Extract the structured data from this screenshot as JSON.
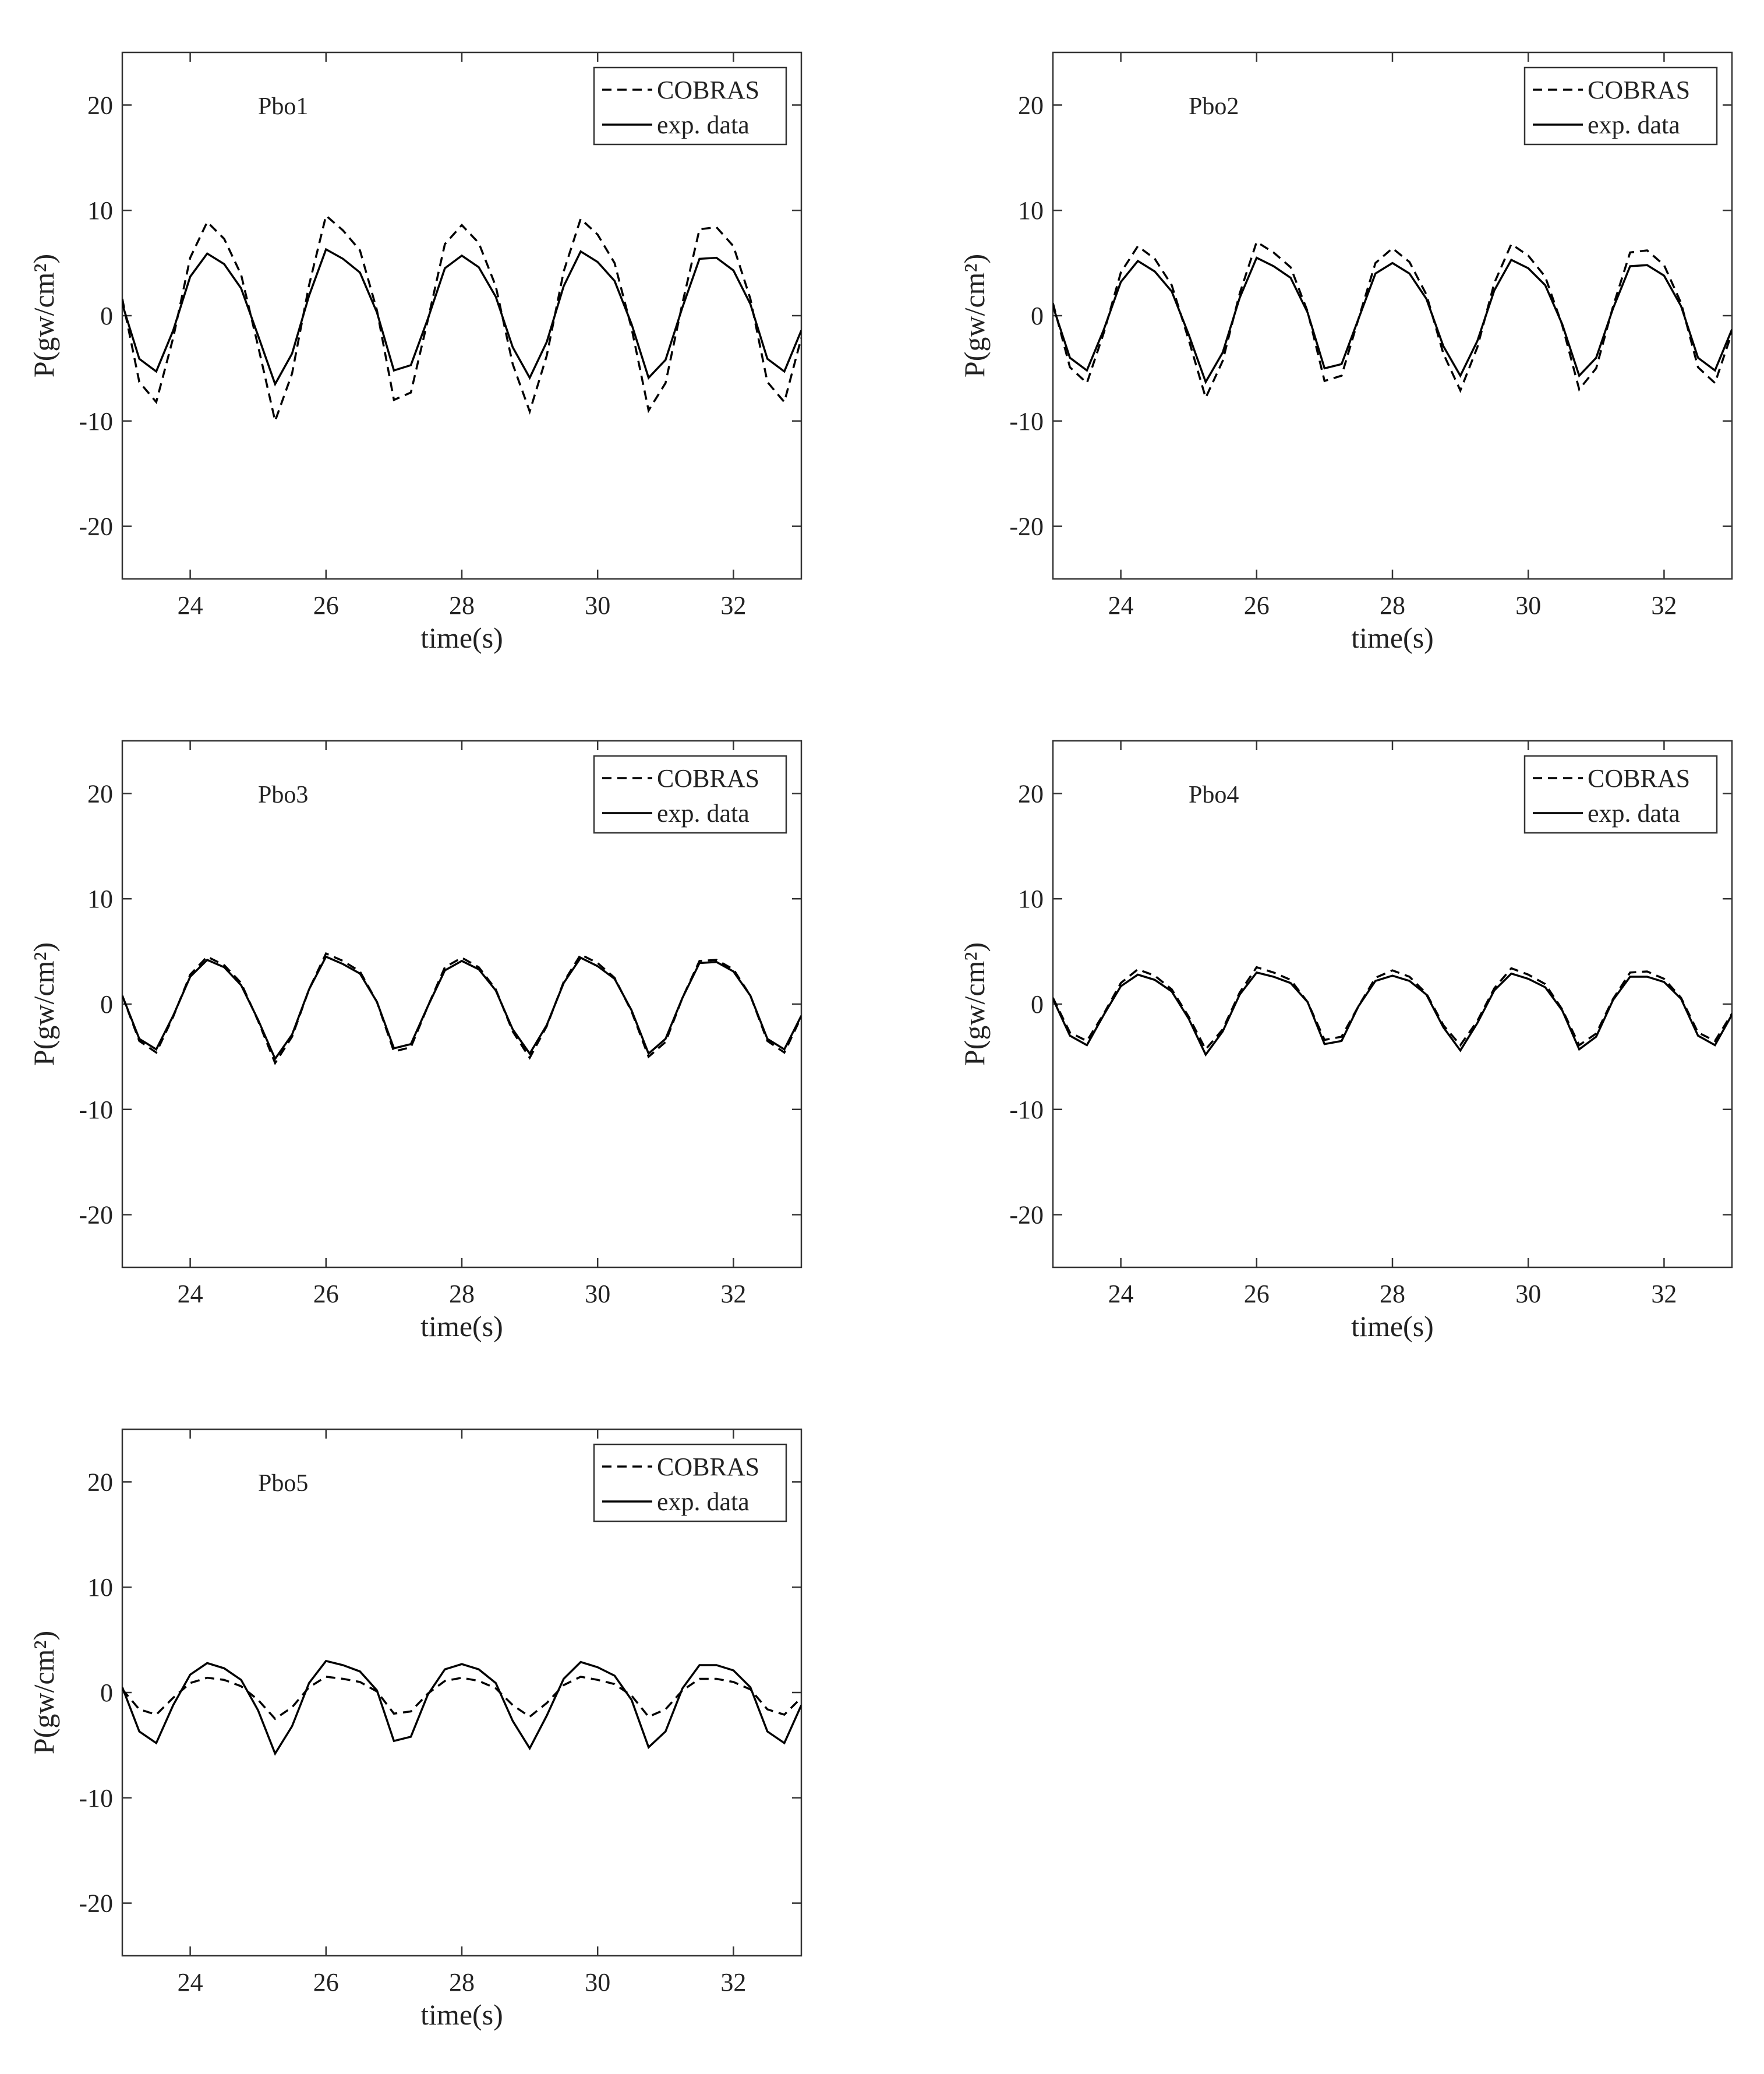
{
  "chart_data": [
    {
      "type": "line",
      "annotation": "Pbo1",
      "xlabel": "time(s)",
      "ylabel": "P(gw/cm²)",
      "xlim": [
        23,
        33
      ],
      "ylim": [
        -25,
        25
      ],
      "xticks": [
        24,
        26,
        28,
        30,
        32
      ],
      "yticks": [
        -20,
        -10,
        0,
        10,
        20
      ],
      "grid": false,
      "legend": "upper right",
      "x": [
        23,
        23.25,
        23.5,
        23.75,
        24,
        24.25,
        24.5,
        24.75,
        25,
        25.25,
        25.5,
        25.75,
        26,
        26.25,
        26.5,
        26.75,
        27,
        27.25,
        27.5,
        27.75,
        28,
        28.25,
        28.5,
        28.75,
        29,
        29.25,
        29.5,
        29.75,
        30,
        30.25,
        30.5,
        30.75,
        31,
        31.25,
        31.5,
        31.75,
        32,
        32.25,
        32.5,
        32.75,
        33
      ],
      "series": [
        {
          "name": "COBRAS",
          "color": "#000000",
          "linestyle": "dashed",
          "values": [
            1.6,
            -6.3,
            -8.2,
            -2.1,
            5.5,
            8.9,
            7.3,
            3.9,
            -2.9,
            -10,
            -5.5,
            2.9,
            9.5,
            8.1,
            6.2,
            0.5,
            -8,
            -7.3,
            -0.4,
            6.8,
            8.6,
            6.9,
            2.8,
            -4.6,
            -9.1,
            -3.8,
            4.2,
            9.2,
            7.7,
            5.0,
            -1.2,
            -9,
            -6.4,
            1.2,
            8.2,
            8.4,
            6.6,
            1.6,
            -6.3,
            -8.2,
            -2.1
          ]
        },
        {
          "name": "exp. data",
          "color": "#000000",
          "linestyle": "solid",
          "values": [
            1.1,
            -4.1,
            -5.3,
            -1.4,
            3.7,
            5.9,
            4.9,
            2.6,
            -1.9,
            -6.5,
            -3.6,
            1.9,
            6.3,
            5.4,
            4.1,
            0.3,
            -5.2,
            -4.7,
            -0.3,
            4.5,
            5.7,
            4.6,
            1.8,
            -3.0,
            -5.9,
            -2.5,
            2.8,
            6.1,
            5.1,
            3.3,
            -0.8,
            -5.9,
            -4.2,
            0.8,
            5.4,
            5.5,
            4.3,
            1.1,
            -4.1,
            -5.3,
            -1.4
          ]
        }
      ]
    },
    {
      "type": "line",
      "annotation": "Pbo2",
      "xlabel": "time(s)",
      "ylabel": "P(gw/cm²)",
      "xlim": [
        23,
        33
      ],
      "ylim": [
        -25,
        25
      ],
      "xticks": [
        24,
        26,
        28,
        30,
        32
      ],
      "yticks": [
        -20,
        -10,
        0,
        10,
        20
      ],
      "grid": false,
      "legend": "upper right",
      "x": [
        23,
        23.25,
        23.5,
        23.75,
        24,
        24.25,
        24.5,
        24.75,
        25,
        25.25,
        25.5,
        25.75,
        26,
        26.25,
        26.5,
        26.75,
        27,
        27.25,
        27.5,
        27.75,
        28,
        28.25,
        28.5,
        28.75,
        29,
        29.25,
        29.5,
        29.75,
        30,
        30.25,
        30.5,
        30.75,
        31,
        31.25,
        31.5,
        31.75,
        32,
        32.25,
        32.5,
        32.75,
        33
      ],
      "series": [
        {
          "name": "COBRAS",
          "color": "#000000",
          "linestyle": "dashed",
          "values": [
            1.2,
            -4.9,
            -6.4,
            -1.6,
            4.1,
            6.6,
            5.4,
            2.9,
            -2.3,
            -7.8,
            -4.3,
            2.1,
            7,
            6.0,
            4.6,
            0.4,
            -6.2,
            -5.7,
            -0.3,
            5.0,
            6.4,
            5.1,
            2.0,
            -3.6,
            -7.1,
            -3.0,
            3.1,
            6.8,
            5.7,
            3.7,
            -0.9,
            -7.0,
            -5.0,
            0.9,
            6.0,
            6.2,
            4.8,
            1.2,
            -4.9,
            -6.4,
            -1.6
          ]
        },
        {
          "name": "exp. data",
          "color": "#000000",
          "linestyle": "solid",
          "values": [
            0.9,
            -4.0,
            -5.2,
            -1.3,
            3.2,
            5.2,
            4.2,
            2.3,
            -1.8,
            -6.3,
            -3.5,
            1.7,
            5.5,
            4.7,
            3.6,
            0.3,
            -5.0,
            -4.6,
            -0.3,
            4.0,
            5.0,
            4.0,
            1.6,
            -2.9,
            -5.7,
            -2.4,
            2.4,
            5.3,
            4.5,
            2.9,
            -0.8,
            -5.7,
            -4.0,
            0.7,
            4.7,
            4.8,
            3.8,
            0.9,
            -4.0,
            -5.2,
            -1.3
          ]
        }
      ]
    },
    {
      "type": "line",
      "annotation": "Pbo3",
      "xlabel": "time(s)",
      "ylabel": "P(gw/cm²)",
      "xlim": [
        23,
        33
      ],
      "ylim": [
        -25,
        25
      ],
      "xticks": [
        24,
        26,
        28,
        30,
        32
      ],
      "yticks": [
        -20,
        -10,
        0,
        10,
        20
      ],
      "grid": false,
      "legend": "upper right",
      "x": [
        23,
        23.25,
        23.5,
        23.75,
        24,
        24.25,
        24.5,
        24.75,
        25,
        25.25,
        25.5,
        25.75,
        26,
        26.25,
        26.5,
        26.75,
        27,
        27.25,
        27.5,
        27.75,
        28,
        28.25,
        28.5,
        28.75,
        29,
        29.25,
        29.5,
        29.75,
        30,
        30.25,
        30.5,
        30.75,
        31,
        31.25,
        31.5,
        31.75,
        32,
        32.25,
        32.5,
        32.75,
        33
      ],
      "series": [
        {
          "name": "COBRAS",
          "color": "#000000",
          "linestyle": "dashed",
          "values": [
            0.8,
            -3.5,
            -4.6,
            -1.2,
            2.8,
            4.5,
            3.7,
            2.0,
            -1.6,
            -5.6,
            -3.1,
            1.4,
            4.8,
            4.1,
            3.1,
            0.2,
            -4.5,
            -4.1,
            -0.2,
            3.5,
            4.4,
            3.5,
            1.4,
            -2.6,
            -5.1,
            -2.1,
            2.1,
            4.7,
            3.9,
            2.5,
            -0.7,
            -5.0,
            -3.6,
            0.6,
            4.1,
            4.2,
            3.3,
            0.8,
            -3.5,
            -4.6,
            -1.2
          ]
        },
        {
          "name": "exp. data",
          "color": "#000000",
          "linestyle": "solid",
          "values": [
            0.8,
            -3.3,
            -4.3,
            -1.1,
            2.6,
            4.2,
            3.5,
            1.8,
            -1.5,
            -5.2,
            -2.9,
            1.4,
            4.5,
            3.8,
            2.9,
            0.2,
            -4.2,
            -3.8,
            -0.2,
            3.2,
            4.1,
            3.3,
            1.3,
            -2.4,
            -4.7,
            -2.0,
            2.0,
            4.4,
            3.6,
            2.4,
            -0.6,
            -4.7,
            -3.3,
            0.6,
            3.9,
            4.0,
            3.1,
            0.8,
            -3.3,
            -4.3,
            -1.1
          ]
        }
      ]
    },
    {
      "type": "line",
      "annotation": "Pbo4",
      "xlabel": "time(s)",
      "ylabel": "P(gw/cm²)",
      "xlim": [
        23,
        33
      ],
      "ylim": [
        -25,
        25
      ],
      "xticks": [
        24,
        26,
        28,
        30,
        32
      ],
      "yticks": [
        -20,
        -10,
        0,
        10,
        20
      ],
      "grid": false,
      "legend": "upper right",
      "x": [
        23,
        23.25,
        23.5,
        23.75,
        24,
        24.25,
        24.5,
        24.75,
        25,
        25.25,
        25.5,
        25.75,
        26,
        26.25,
        26.5,
        26.75,
        27,
        27.25,
        27.5,
        27.75,
        28,
        28.25,
        28.5,
        28.75,
        29,
        29.25,
        29.5,
        29.75,
        30,
        30.25,
        30.5,
        30.75,
        31,
        31.25,
        31.5,
        31.75,
        32,
        32.25,
        32.5,
        32.75,
        33
      ],
      "series": [
        {
          "name": "COBRAS",
          "color": "#000000",
          "linestyle": "dashed",
          "values": [
            0.6,
            -2.7,
            -3.5,
            -0.9,
            2.0,
            3.3,
            2.7,
            1.4,
            -1.2,
            -4.3,
            -2.4,
            1.1,
            3.5,
            3.0,
            2.3,
            0.2,
            -3.4,
            -3.1,
            -0.2,
            2.5,
            3.2,
            2.6,
            1.0,
            -2.0,
            -3.9,
            -1.6,
            1.5,
            3.4,
            2.8,
            1.9,
            -0.5,
            -3.9,
            -2.8,
            0.5,
            3.0,
            3.1,
            2.4,
            0.6,
            -2.7,
            -3.5,
            -0.9
          ]
        },
        {
          "name": "exp. data",
          "color": "#000000",
          "linestyle": "solid",
          "values": [
            0.5,
            -3.0,
            -3.9,
            -1.0,
            1.7,
            2.8,
            2.3,
            1.2,
            -1.4,
            -4.8,
            -2.6,
            0.9,
            3,
            2.6,
            2.0,
            0.2,
            -3.8,
            -3.5,
            -0.2,
            2.2,
            2.7,
            2.2,
            0.9,
            -2.2,
            -4.4,
            -1.8,
            1.3,
            2.9,
            2.4,
            1.6,
            -0.6,
            -4.3,
            -3.1,
            0.4,
            2.6,
            2.6,
            2.1,
            0.5,
            -3.0,
            -3.9,
            -1.0
          ]
        }
      ]
    },
    {
      "type": "line",
      "annotation": "Pbo5",
      "xlabel": "time(s)",
      "ylabel": "P(gw/cm²)",
      "xlim": [
        23,
        33
      ],
      "ylim": [
        -25,
        25
      ],
      "xticks": [
        24,
        26,
        28,
        30,
        32
      ],
      "yticks": [
        -20,
        -10,
        0,
        10,
        20
      ],
      "grid": false,
      "legend": "upper right",
      "x": [
        23,
        23.25,
        23.5,
        23.75,
        24,
        24.25,
        24.5,
        24.75,
        25,
        25.25,
        25.5,
        25.75,
        26,
        26.25,
        26.5,
        26.75,
        27,
        27.25,
        27.5,
        27.75,
        28,
        28.25,
        28.5,
        28.75,
        29,
        29.25,
        29.5,
        29.75,
        30,
        30.25,
        30.5,
        30.75,
        31,
        31.25,
        31.5,
        31.75,
        32,
        32.25,
        32.5,
        32.75,
        33
      ],
      "series": [
        {
          "name": "COBRAS",
          "color": "#000000",
          "linestyle": "dashed",
          "values": [
            0.3,
            -1.6,
            -2.1,
            -0.5,
            0.9,
            1.4,
            1.2,
            0.6,
            -0.7,
            -2.5,
            -1.4,
            0.5,
            1.5,
            1.3,
            1.0,
            0.1,
            -2.0,
            -1.8,
            -0.1,
            1.1,
            1.4,
            1.1,
            0.4,
            -1.2,
            -2.3,
            -1.0,
            0.7,
            1.5,
            1.2,
            0.8,
            -0.3,
            -2.3,
            -1.6,
            0.2,
            1.3,
            1.3,
            1.0,
            0.3,
            -1.6,
            -2.1,
            -0.5
          ]
        },
        {
          "name": "exp. data",
          "color": "#000000",
          "linestyle": "solid",
          "values": [
            0.5,
            -3.7,
            -4.8,
            -1.2,
            1.7,
            2.8,
            2.3,
            1.2,
            -1.7,
            -5.8,
            -3.2,
            0.9,
            3,
            2.6,
            2.0,
            0.2,
            -4.6,
            -4.2,
            -0.2,
            2.2,
            2.7,
            2.2,
            0.9,
            -2.7,
            -5.3,
            -2.2,
            1.3,
            2.9,
            2.4,
            1.6,
            -0.7,
            -5.2,
            -3.7,
            0.4,
            2.6,
            2.6,
            2.1,
            0.5,
            -3.7,
            -4.8,
            -1.2
          ]
        }
      ]
    }
  ]
}
